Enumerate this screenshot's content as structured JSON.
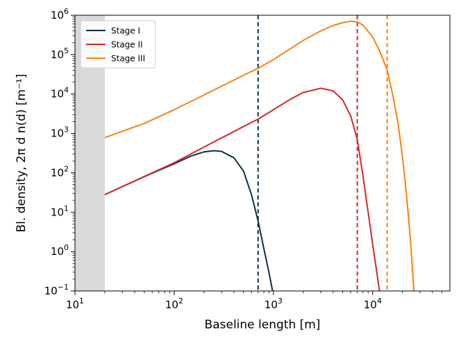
{
  "chart_data": {
    "type": "line",
    "title": "",
    "xlabel": "Baseline length [m]",
    "ylabel": "Bl. density, 2π d n(d) [m⁻¹]",
    "xscale": "log",
    "yscale": "log",
    "xlim": [
      10,
      60000
    ],
    "ylim": [
      0.1,
      1000000
    ],
    "x_ticks": [
      {
        "value": 10,
        "mantissa": "10",
        "exp": "1"
      },
      {
        "value": 100,
        "mantissa": "10",
        "exp": "2"
      },
      {
        "value": 1000,
        "mantissa": "10",
        "exp": "3"
      },
      {
        "value": 10000,
        "mantissa": "10",
        "exp": "4"
      }
    ],
    "y_ticks": [
      {
        "value": 0.1,
        "mantissa": "10",
        "exp": "−1"
      },
      {
        "value": 1,
        "mantissa": "10",
        "exp": "0"
      },
      {
        "value": 10,
        "mantissa": "10",
        "exp": "1"
      },
      {
        "value": 100,
        "mantissa": "10",
        "exp": "2"
      },
      {
        "value": 1000,
        "mantissa": "10",
        "exp": "3"
      },
      {
        "value": 10000,
        "mantissa": "10",
        "exp": "4"
      },
      {
        "value": 100000,
        "mantissa": "10",
        "exp": "5"
      },
      {
        "value": 1000000,
        "mantissa": "10",
        "exp": "6"
      }
    ],
    "shaded_region": {
      "x_from": 10,
      "x_to": 20,
      "color": "#d9d9d9"
    },
    "legend": {
      "location": "top-left"
    },
    "series": [
      {
        "name": "Stage I",
        "color": "#0b2e45",
        "cutoff": 700,
        "x": [
          20,
          50,
          100,
          150,
          200,
          250,
          300,
          400,
          500,
          600,
          700,
          800,
          900,
          980
        ],
        "y": [
          28,
          80,
          170,
          270,
          340,
          365,
          350,
          240,
          110,
          28,
          6,
          1.2,
          0.3,
          0.1
        ]
      },
      {
        "name": "Stage II",
        "color": "#d62728",
        "cutoff": 7000,
        "x": [
          20,
          100,
          200,
          500,
          700,
          1000,
          1500,
          2000,
          3000,
          4000,
          5000,
          6000,
          7000,
          8000,
          9000,
          10000,
          11000,
          11700
        ],
        "y": [
          28,
          180,
          450,
          1500,
          2300,
          4000,
          7500,
          11000,
          14000,
          12000,
          7000,
          2800,
          700,
          80,
          10,
          1.5,
          0.3,
          0.1
        ]
      },
      {
        "name": "Stage III",
        "color": "#ff7f0e",
        "cutoff": 14000,
        "x": [
          20,
          50,
          100,
          200,
          500,
          700,
          1000,
          2000,
          3000,
          4000,
          5000,
          6000,
          7000,
          8000,
          10000,
          12000,
          14000,
          16000,
          18000,
          20000,
          22000,
          24000,
          26000
        ],
        "y": [
          780,
          1800,
          4000,
          9500,
          30000,
          45000,
          75000,
          230000,
          400000,
          550000,
          650000,
          700000,
          680000,
          560000,
          280000,
          110000,
          40000,
          9000,
          1800,
          250,
          25,
          2,
          0.1
        ]
      }
    ]
  }
}
